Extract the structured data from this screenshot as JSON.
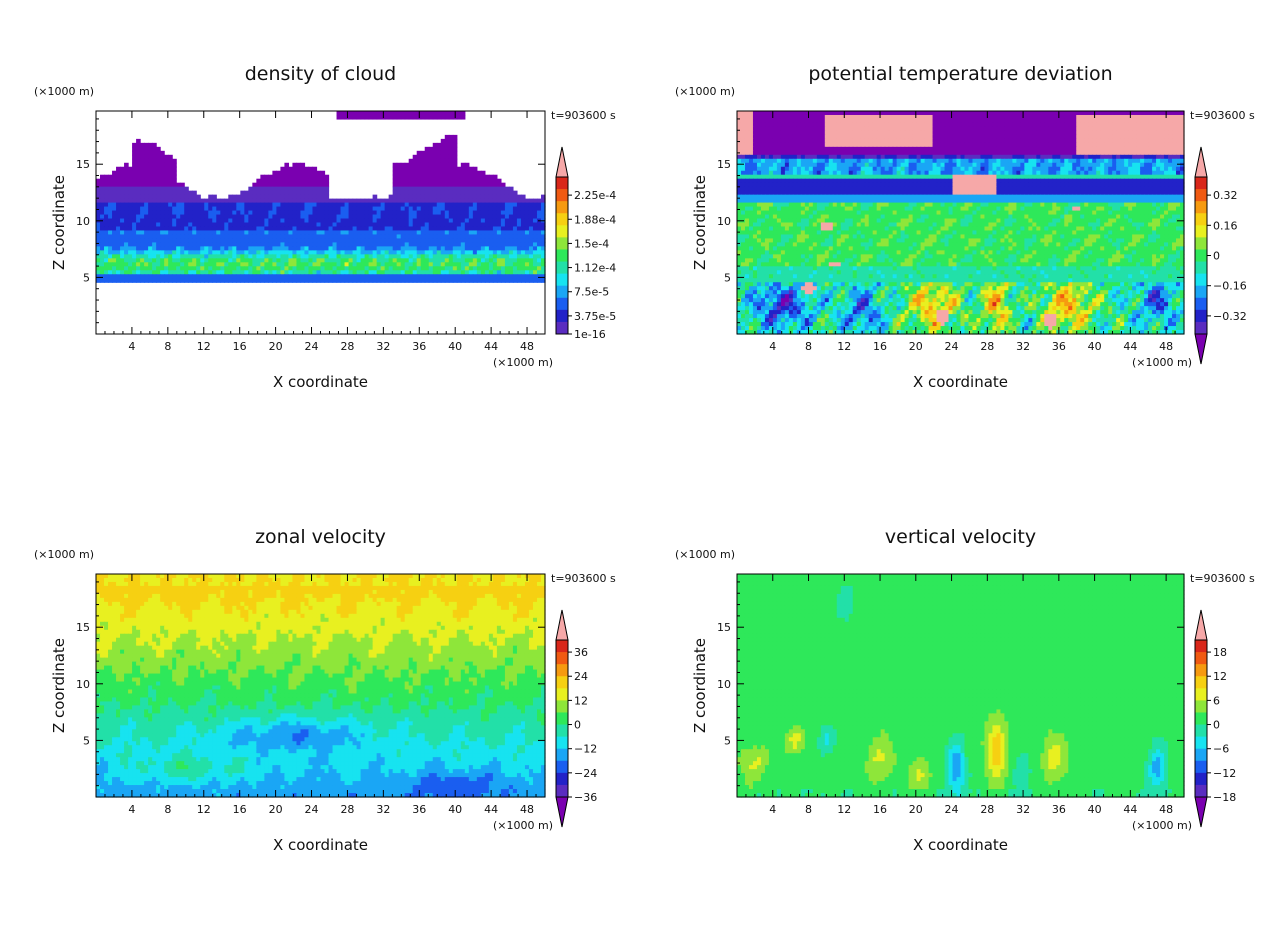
{
  "chart_data": [
    {
      "type": "heatmap",
      "title": "density of cloud",
      "xlabel": "X coordinate",
      "ylabel": "Z coordinate",
      "x_units": "(×1000 m)",
      "y_units": "(×1000 m)",
      "time_label": "t=903600 s",
      "xlim": [
        0,
        50
      ],
      "ylim": [
        0,
        19.7
      ],
      "xticks": [
        "4",
        "8",
        "12",
        "16",
        "20",
        "24",
        "28",
        "32",
        "36",
        "40",
        "44",
        "48"
      ],
      "yticks": [
        "5",
        "10",
        "15"
      ],
      "colorbar": {
        "labels": [
          "2.25e-4",
          "1.88e-4",
          "1.5e-4",
          "1.12e-4",
          "7.5e-5",
          "3.75e-5",
          "1e-16"
        ],
        "values": [
          0.000225,
          0.000188,
          0.00015,
          0.000112,
          7.5e-05,
          3.75e-05,
          1e-16
        ],
        "triangle_top": true,
        "triangle_bottom": false
      },
      "field": "cloud"
    },
    {
      "type": "heatmap",
      "title": "potential temperature deviation",
      "xlabel": "X coordinate",
      "ylabel": "Z coordinate",
      "x_units": "(×1000 m)",
      "y_units": "(×1000 m)",
      "time_label": "t=903600 s",
      "xlim": [
        0,
        50
      ],
      "ylim": [
        0,
        19.7
      ],
      "xticks": [
        "4",
        "8",
        "12",
        "16",
        "20",
        "24",
        "28",
        "32",
        "36",
        "40",
        "44",
        "48"
      ],
      "yticks": [
        "5",
        "10",
        "15"
      ],
      "colorbar": {
        "labels": [
          "0.32",
          "0.16",
          "0",
          "−0.16",
          "−0.32"
        ],
        "values": [
          0.32,
          0.16,
          0,
          -0.16,
          -0.32
        ],
        "triangle_top": true,
        "triangle_bottom": true
      },
      "field": "theta"
    },
    {
      "type": "heatmap",
      "title": "zonal velocity",
      "xlabel": "X coordinate",
      "ylabel": "Z coordinate",
      "x_units": "(×1000 m)",
      "y_units": "(×1000 m)",
      "time_label": "t=903600 s",
      "xlim": [
        0,
        50
      ],
      "ylim": [
        0,
        19.7
      ],
      "xticks": [
        "4",
        "8",
        "12",
        "16",
        "20",
        "24",
        "28",
        "32",
        "36",
        "40",
        "44",
        "48"
      ],
      "yticks": [
        "5",
        "10",
        "15"
      ],
      "colorbar": {
        "labels": [
          "36",
          "24",
          "12",
          "0",
          "−12",
          "−24",
          "−36"
        ],
        "values": [
          36,
          24,
          12,
          0,
          -12,
          -24,
          -36
        ],
        "triangle_top": true,
        "triangle_bottom": true
      },
      "field": "u"
    },
    {
      "type": "heatmap",
      "title": "vertical velocity",
      "xlabel": "X coordinate",
      "ylabel": "Z coordinate",
      "x_units": "(×1000 m)",
      "y_units": "(×1000 m)",
      "time_label": "t=903600 s",
      "xlim": [
        0,
        50
      ],
      "ylim": [
        0,
        19.7
      ],
      "xticks": [
        "4",
        "8",
        "12",
        "16",
        "20",
        "24",
        "28",
        "32",
        "36",
        "40",
        "44",
        "48"
      ],
      "yticks": [
        "5",
        "10",
        "15"
      ],
      "colorbar": {
        "labels": [
          "18",
          "12",
          "6",
          "0",
          "−6",
          "−12",
          "−18"
        ],
        "values": [
          18,
          12,
          6,
          0,
          -6,
          -12,
          -18
        ],
        "triangle_top": true,
        "triangle_bottom": true
      },
      "field": "w"
    }
  ],
  "colors": {
    "palette": [
      "#7a00b0",
      "#5a2cc0",
      "#2222c8",
      "#1a5ef0",
      "#1aa6f5",
      "#17e3f0",
      "#22e0a8",
      "#2ee85a",
      "#8ee63a",
      "#e8f020",
      "#f6d012",
      "#f69a10",
      "#f05a12",
      "#d9271a",
      "#f6a8a8"
    ],
    "axis": "#000000",
    "background": "#ffffff"
  }
}
